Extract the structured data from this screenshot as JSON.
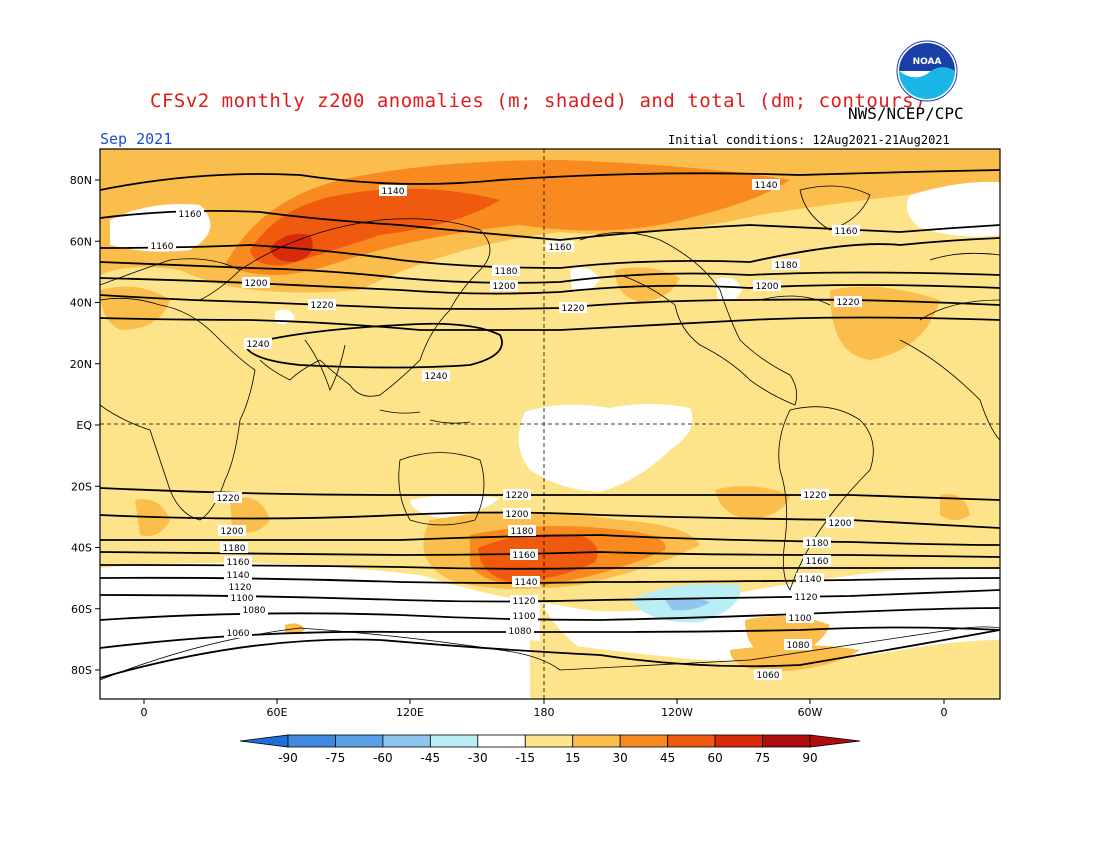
{
  "header": {
    "title": "CFSv2 monthly z200 anomalies (m; shaded) and total (dm; contours)",
    "org": "NWS/NCEP/CPC",
    "month": "Sep 2021",
    "init": "Initial conditions: 12Aug2021-21Aug2021",
    "logo_text": "NOAA"
  },
  "axes": {
    "lat_labels": [
      "80N",
      "60N",
      "40N",
      "20N",
      "EQ",
      "20S",
      "40S",
      "60S",
      "80S"
    ],
    "lon_labels": [
      "0",
      "60E",
      "120E",
      "180",
      "120W",
      "60W",
      "0"
    ]
  },
  "colorbar": {
    "ticks": [
      "-90",
      "-75",
      "-60",
      "-45",
      "-30",
      "-15",
      "15",
      "30",
      "45",
      "60",
      "75",
      "90"
    ],
    "colors": [
      "#1f6fd8",
      "#3f89e0",
      "#5aa0e6",
      "#8ec6ef",
      "#b8eef4",
      "#ffffff",
      "#fde48a",
      "#fbbd4c",
      "#f98a1f",
      "#f05a0e",
      "#d92a0a",
      "#b00d0d"
    ]
  },
  "contours": {
    "labels": [
      "1140",
      "1140",
      "1160",
      "1160",
      "1160",
      "1160",
      "1180",
      "1180",
      "1200",
      "1200",
      "1200",
      "1220",
      "1220",
      "1220",
      "1240",
      "1240",
      "1220",
      "1220",
      "1220",
      "1200",
      "1200",
      "1200",
      "1180",
      "1180",
      "1180",
      "1160",
      "1160",
      "1160",
      "1140",
      "1140",
      "1140",
      "1120",
      "1120",
      "1120",
      "1100",
      "1100",
      "1100",
      "1080",
      "1080",
      "1080",
      "1060",
      "1060"
    ]
  },
  "chart_data": {
    "type": "heatmap",
    "title": "CFSv2 monthly z200 anomalies (m; shaded) and total (dm; contours)",
    "color_levels": [
      -90,
      -75,
      -60,
      -45,
      -30,
      -15,
      15,
      30,
      45,
      60,
      75,
      90
    ],
    "xlabel": "",
    "ylabel": "",
    "lon_ticks": [
      "0",
      "60E",
      "120E",
      "180",
      "120W",
      "60W",
      "0"
    ],
    "lat_ticks": [
      "80N",
      "60N",
      "40N",
      "20N",
      "EQ",
      "20S",
      "40S",
      "60S",
      "80S"
    ],
    "contour_levels_dm": [
      1060,
      1080,
      1100,
      1120,
      1140,
      1160,
      1180,
      1200,
      1220,
      1240
    ]
  }
}
